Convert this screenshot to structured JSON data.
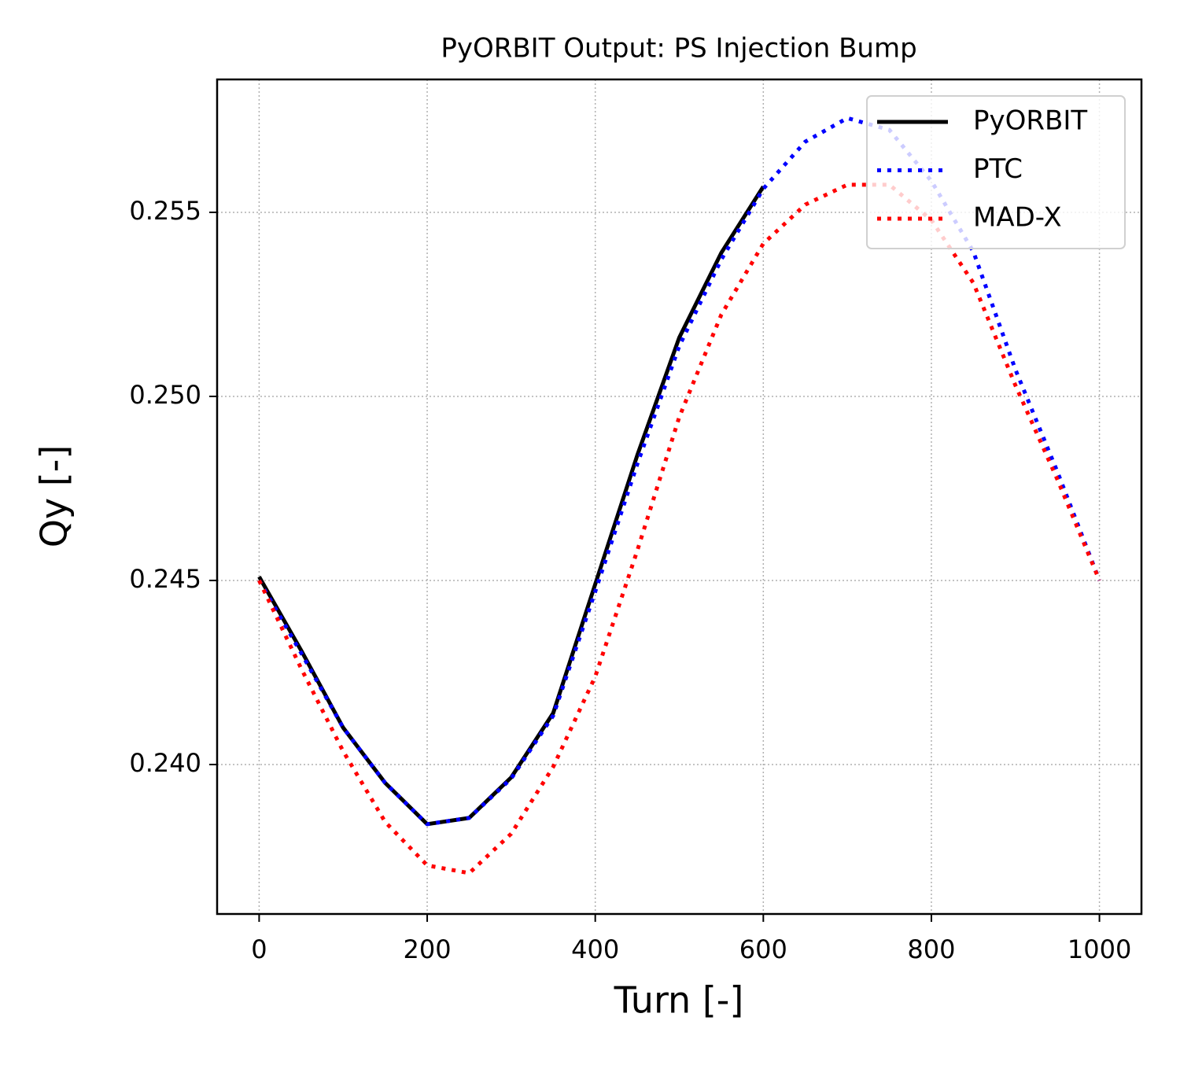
{
  "chart_data": {
    "type": "line",
    "title": "PyORBIT Output: PS Injection Bump",
    "xlabel": "Turn [-]",
    "ylabel": "Qy [-]",
    "x": [
      0,
      50,
      100,
      150,
      200,
      250,
      300,
      350,
      400,
      450,
      500,
      550,
      600,
      650,
      700,
      750,
      800,
      850,
      900,
      950,
      1000
    ],
    "series": [
      {
        "name": "PyORBIT",
        "color": "#000000",
        "linestyle": "solid",
        "values": [
          0.2451,
          0.2431,
          0.241,
          0.2395,
          0.23838,
          0.23855,
          0.23965,
          0.2414,
          0.2449,
          0.2484,
          0.2516,
          0.2539,
          0.2557,
          null,
          null,
          null,
          null,
          null,
          null,
          null,
          null
        ]
      },
      {
        "name": "PTC",
        "color": "#0000ff",
        "linestyle": "dotted",
        "values": [
          0.245,
          0.24303,
          0.241,
          0.2395,
          0.23838,
          0.23855,
          0.23962,
          0.24133,
          0.2447,
          0.24816,
          0.25137,
          0.25372,
          0.25564,
          0.25692,
          0.25756,
          0.25724,
          0.25585,
          0.25393,
          0.25073,
          0.24795,
          0.245
        ]
      },
      {
        "name": "MAD-X",
        "color": "#ff0000",
        "linestyle": "dotted",
        "values": [
          0.245,
          0.24261,
          0.24036,
          0.23844,
          0.23726,
          0.23705,
          0.23812,
          0.23994,
          0.24239,
          0.24581,
          0.24944,
          0.25222,
          0.25415,
          0.25521,
          0.25575,
          0.25575,
          0.25479,
          0.25308,
          0.2503,
          0.24774,
          0.245
        ]
      }
    ],
    "xlim": [
      -50,
      1050
    ],
    "ylim": [
      0.23594,
      0.25861
    ],
    "xticks": [
      0,
      200,
      400,
      600,
      800,
      1000
    ],
    "yticks": [
      {
        "value": 0.24,
        "label": "0.240"
      },
      0.245,
      {
        "value": 0.25,
        "label": "0.250"
      },
      0.255
    ],
    "grid": true,
    "legend": "upper right"
  }
}
